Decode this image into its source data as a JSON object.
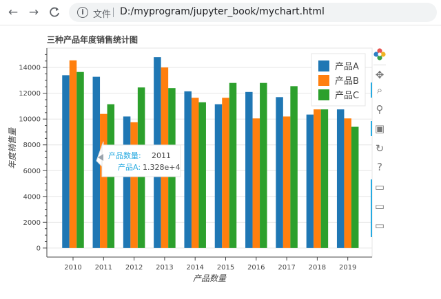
{
  "browser": {
    "back_glyph": "←",
    "forward_glyph": "→",
    "reload_glyph": "C",
    "info_glyph": "i",
    "site_label": "文件",
    "url": "D:/myprogram/jupyter_book/mychart.html"
  },
  "chart_data": {
    "type": "bar",
    "title": "三种产品年度销售统计图",
    "xlabel": "产品数量",
    "ylabel": "年度销售量",
    "categories": [
      "2010",
      "2011",
      "2012",
      "2013",
      "2014",
      "2015",
      "2016",
      "2017",
      "2018",
      "2019"
    ],
    "series": [
      {
        "name": "产品A",
        "color": "#1f77b4",
        "values": [
          13400,
          13280,
          10200,
          14800,
          12150,
          11150,
          12100,
          11700,
          10350,
          10750
        ]
      },
      {
        "name": "产品B",
        "color": "#ff7f0e",
        "values": [
          14550,
          10400,
          9750,
          14000,
          11650,
          11650,
          10050,
          10200,
          10750,
          10050
        ]
      },
      {
        "name": "产品C",
        "color": "#2ca02c",
        "values": [
          13650,
          11150,
          12450,
          12400,
          11300,
          12800,
          12800,
          12550,
          10750,
          9400
        ]
      }
    ],
    "yticks": [
      "0",
      "2000",
      "4000",
      "6000",
      "8000",
      "10000",
      "12000",
      "14000"
    ],
    "ylim": [
      -700,
      15500
    ],
    "grid": true,
    "legend_position": "top-right",
    "tooltip": {
      "line1_key": "产品数量:",
      "line1_val": "2011",
      "line2_key": "产品A:",
      "line2_val": "1.328e+4"
    }
  },
  "toolbar": {
    "logo": "bokeh-logo-icon",
    "tools": [
      {
        "name": "pan-tool-icon",
        "glyph": "✥"
      },
      {
        "name": "box-zoom-tool-icon",
        "glyph": "⌕"
      },
      {
        "name": "wheel-zoom-tool-icon",
        "glyph": "⚲"
      },
      {
        "name": "save-tool-icon",
        "glyph": "▣"
      },
      {
        "name": "reset-tool-icon",
        "glyph": "↻"
      },
      {
        "name": "help-tool-icon",
        "glyph": "?"
      },
      {
        "name": "hover-tool-icon-1",
        "glyph": "▭"
      },
      {
        "name": "hover-tool-icon-2",
        "glyph": "▭"
      },
      {
        "name": "hover-tool-icon-3",
        "glyph": "▭"
      }
    ]
  }
}
